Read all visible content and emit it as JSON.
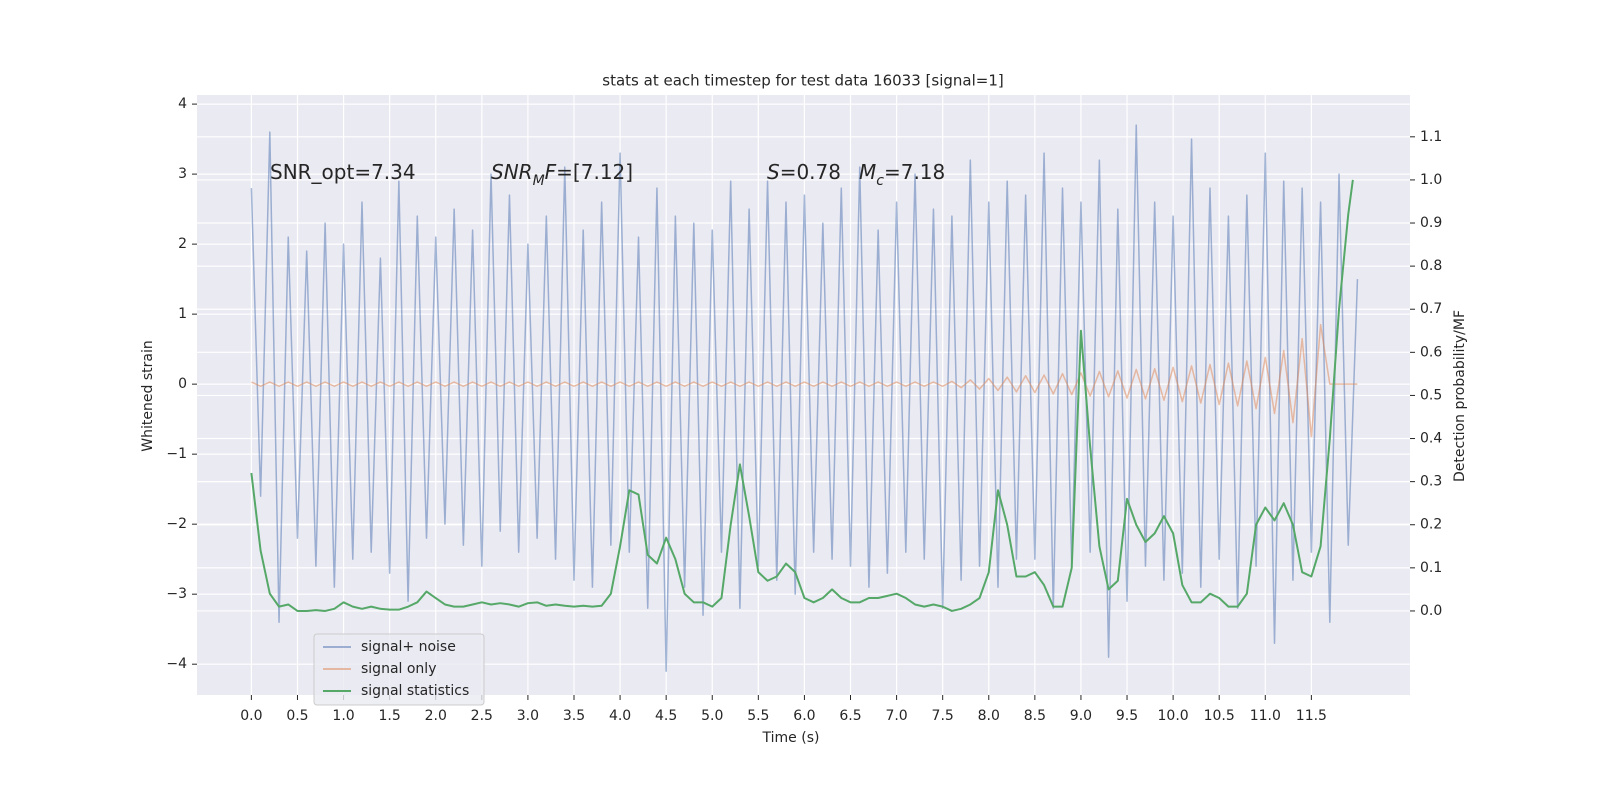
{
  "chart_data": {
    "type": "line",
    "title": "stats at each timestep for test data 16033 [signal=1]",
    "xlabel": "Time (s)",
    "ylabel": "Whitened strain",
    "y2label": "Detection probability/MF",
    "xlim": [
      -0.59,
      12.57
    ],
    "ylim": [
      -4.44,
      4.13
    ],
    "y2lim": [
      -0.195,
      1.197
    ],
    "xticks": [
      {
        "value": 0,
        "label": "0.0"
      },
      0.5,
      {
        "value": 1,
        "label": "1.0"
      },
      1.5,
      {
        "value": 2,
        "label": "2.0"
      },
      2.5,
      {
        "value": 3,
        "label": "3.0"
      },
      3.5,
      {
        "value": 4,
        "label": "4.0"
      },
      4.5,
      {
        "value": 5,
        "label": "5.0"
      },
      5.5,
      {
        "value": 6,
        "label": "6.0"
      },
      6.5,
      {
        "value": 7,
        "label": "7.0"
      },
      7.5,
      {
        "value": 8,
        "label": "8.0"
      },
      8.5,
      {
        "value": 9,
        "label": "9.0"
      },
      9.5,
      {
        "value": 10,
        "label": "10.0"
      },
      10.5,
      {
        "value": 11,
        "label": "11.0"
      },
      11.5
    ],
    "yticks": [
      {
        "value": -4,
        "label": "−4"
      },
      {
        "value": -3,
        "label": "−3"
      },
      {
        "value": -2,
        "label": "−2"
      },
      {
        "value": -1,
        "label": "−1"
      },
      0,
      1,
      2,
      3,
      4
    ],
    "y2ticks": [
      {
        "value": 0,
        "label": "0.0"
      },
      0.1,
      0.2,
      0.3,
      0.4,
      0.5,
      0.6,
      0.7,
      0.8,
      0.9,
      {
        "value": 1,
        "label": "1.0"
      },
      1.1
    ],
    "grid": true,
    "legend": "lower left",
    "annotations": [
      {
        "parts": [
          {
            "text": "SNR_opt=7.34"
          }
        ]
      },
      {
        "parts": [
          {
            "text": "SNR",
            "italic": true
          },
          {
            "text": "M",
            "italic": true,
            "sub": true
          },
          {
            "text": "F",
            "italic": true
          },
          {
            "text": "=[7.12]"
          }
        ]
      },
      {
        "parts": [
          {
            "text": "S",
            "italic": true
          },
          {
            "text": "=0.78"
          }
        ]
      },
      {
        "parts": [
          {
            "text": "M",
            "italic": true
          },
          {
            "text": "c",
            "italic": true,
            "sub": true
          },
          {
            "text": "=7.18"
          }
        ]
      }
    ],
    "x": [
      0,
      0.1,
      0.2,
      0.3,
      0.4,
      0.5,
      0.6,
      0.7,
      0.8,
      0.9,
      1,
      1.1,
      1.2,
      1.3,
      1.4,
      1.5,
      1.6,
      1.7,
      1.8,
      1.9,
      2,
      2.1,
      2.2,
      2.3,
      2.4,
      2.5,
      2.6,
      2.7,
      2.8,
      2.9,
      3,
      3.1,
      3.2,
      3.3,
      3.4,
      3.5,
      3.6,
      3.7,
      3.8,
      3.9,
      4,
      4.1,
      4.2,
      4.3,
      4.4,
      4.5,
      4.6,
      4.7,
      4.8,
      4.9,
      5,
      5.1,
      5.2,
      5.3,
      5.4,
      5.5,
      5.6,
      5.7,
      5.8,
      5.9,
      6,
      6.1,
      6.2,
      6.3,
      6.4,
      6.5,
      6.6,
      6.7,
      6.8,
      6.9,
      7,
      7.1,
      7.2,
      7.3,
      7.4,
      7.5,
      7.6,
      7.7,
      7.8,
      7.9,
      8,
      8.1,
      8.2,
      8.3,
      8.4,
      8.5,
      8.6,
      8.7,
      8.8,
      8.9,
      9,
      9.1,
      9.2,
      9.3,
      9.4,
      9.5,
      9.6,
      9.7,
      9.8,
      9.9,
      10,
      10.1,
      10.2,
      10.3,
      10.4,
      10.5,
      10.6,
      10.7,
      10.8,
      10.9,
      11,
      11.1,
      11.2,
      11.3,
      11.4,
      11.5,
      11.6,
      11.7,
      11.8,
      11.9,
      12
    ],
    "series": [
      {
        "name": "signal+ noise",
        "color": "#4c72b0",
        "alpha": 0.5,
        "values": [
          2.8,
          -1.6,
          3.6,
          -3.4,
          2.1,
          -2.2,
          1.9,
          -2.6,
          2.3,
          -2.9,
          2.0,
          -2.5,
          2.6,
          -2.4,
          1.8,
          -2.7,
          2.9,
          -3.1,
          2.4,
          -2.2,
          2.1,
          -2.0,
          2.5,
          -2.3,
          2.2,
          -2.6,
          3.0,
          -2.1,
          2.7,
          -2.4,
          2.0,
          -2.2,
          2.4,
          -2.5,
          3.1,
          -2.8,
          2.2,
          -2.9,
          2.6,
          -2.3,
          3.3,
          -2.4,
          2.1,
          -3.2,
          2.8,
          -4.1,
          2.4,
          -2.9,
          2.3,
          -3.3,
          2.2,
          -2.4,
          2.9,
          -3.2,
          2.5,
          -2.6,
          2.9,
          -2.8,
          2.6,
          -3.0,
          2.7,
          -2.4,
          2.3,
          -2.5,
          2.8,
          -2.6,
          3.1,
          -2.9,
          2.2,
          -2.7,
          2.6,
          -2.4,
          3.0,
          -2.5,
          2.5,
          -3.2,
          2.4,
          -2.8,
          3.2,
          -2.6,
          2.6,
          -2.9,
          2.9,
          -2.5,
          2.7,
          -2.5,
          3.3,
          -3.2,
          2.8,
          -2.6,
          2.6,
          -2.4,
          3.2,
          -3.9,
          2.5,
          -3.1,
          3.7,
          -2.6,
          2.6,
          -2.8,
          2.4,
          -2.7,
          3.5,
          -2.9,
          2.8,
          -2.5,
          2.4,
          -3.2,
          2.7,
          -2.6,
          3.3,
          -3.7,
          2.9,
          -2.8,
          2.8,
          -2.4,
          2.6,
          -3.4,
          3.0,
          -2.3,
          1.5
        ]
      },
      {
        "name": "signal only",
        "color": "#dd8452",
        "alpha": 0.5,
        "values": [
          0.03,
          -0.03,
          0.03,
          -0.03,
          0.03,
          -0.03,
          0.03,
          -0.03,
          0.03,
          -0.03,
          0.03,
          -0.03,
          0.03,
          -0.03,
          0.03,
          -0.03,
          0.03,
          -0.03,
          0.03,
          -0.03,
          0.03,
          -0.03,
          0.03,
          -0.03,
          0.03,
          -0.03,
          0.03,
          -0.03,
          0.03,
          -0.03,
          0.03,
          -0.03,
          0.03,
          -0.03,
          0.03,
          -0.03,
          0.03,
          -0.03,
          0.03,
          -0.03,
          0.03,
          -0.03,
          0.03,
          -0.03,
          0.03,
          -0.03,
          0.03,
          -0.03,
          0.03,
          -0.03,
          0.03,
          -0.03,
          0.03,
          -0.03,
          0.03,
          -0.03,
          0.03,
          -0.03,
          0.03,
          -0.03,
          0.03,
          -0.03,
          0.03,
          -0.03,
          0.03,
          -0.03,
          0.03,
          -0.03,
          0.03,
          -0.03,
          0.03,
          -0.03,
          0.03,
          -0.03,
          0.03,
          -0.03,
          0.04,
          -0.05,
          0.06,
          -0.07,
          0.08,
          -0.09,
          0.1,
          -0.11,
          0.12,
          -0.12,
          0.13,
          -0.14,
          0.15,
          -0.15,
          0.16,
          -0.17,
          0.18,
          -0.18,
          0.19,
          -0.2,
          0.21,
          -0.21,
          0.22,
          -0.23,
          0.24,
          -0.25,
          0.26,
          -0.27,
          0.28,
          -0.29,
          0.3,
          -0.31,
          0.33,
          -0.35,
          0.38,
          -0.42,
          0.48,
          -0.55,
          0.65,
          -0.75,
          0.85,
          0,
          0,
          0,
          0
        ]
      },
      {
        "name": "signal statistics",
        "color": "#55a868",
        "alpha": 1,
        "axis": "y2",
        "x": [
          0,
          0.1,
          0.2,
          0.3,
          0.4,
          0.5,
          0.6,
          0.7,
          0.8,
          0.9,
          1,
          1.1,
          1.2,
          1.3,
          1.4,
          1.5,
          1.6,
          1.7,
          1.8,
          1.9,
          2,
          2.1,
          2.2,
          2.3,
          2.4,
          2.5,
          2.6,
          2.7,
          2.8,
          2.9,
          3,
          3.1,
          3.2,
          3.3,
          3.4,
          3.5,
          3.6,
          3.7,
          3.8,
          3.9,
          4,
          4.1,
          4.2,
          4.3,
          4.4,
          4.5,
          4.6,
          4.7,
          4.8,
          4.9,
          5,
          5.1,
          5.2,
          5.3,
          5.4,
          5.5,
          5.6,
          5.7,
          5.8,
          5.9,
          6,
          6.1,
          6.2,
          6.3,
          6.4,
          6.5,
          6.6,
          6.7,
          6.8,
          6.9,
          7,
          7.1,
          7.2,
          7.3,
          7.4,
          7.5,
          7.6,
          7.7,
          7.8,
          7.9,
          8,
          8.1,
          8.2,
          8.3,
          8.4,
          8.5,
          8.6,
          8.7,
          8.8,
          8.9,
          9,
          9.1,
          9.2,
          9.3,
          9.4,
          9.5,
          9.6,
          9.7,
          9.8,
          9.9,
          10,
          10.1,
          10.2,
          10.3,
          10.4,
          10.5,
          10.6,
          10.7,
          10.8,
          10.9,
          11,
          11.1,
          11.2,
          11.3,
          11.4,
          11.5,
          11.6,
          11.7,
          11.8,
          11.9,
          11.95
        ],
        "values": [
          0.32,
          0.14,
          0.04,
          0.01,
          0.015,
          0.0,
          0.0,
          0.002,
          0.0,
          0.005,
          0.02,
          0.01,
          0.005,
          0.01,
          0.005,
          0.003,
          0.003,
          0.01,
          0.02,
          0.045,
          0.03,
          0.015,
          0.01,
          0.01,
          0.015,
          0.02,
          0.015,
          0.018,
          0.015,
          0.01,
          0.018,
          0.02,
          0.012,
          0.015,
          0.012,
          0.01,
          0.012,
          0.01,
          0.012,
          0.04,
          0.15,
          0.28,
          0.27,
          0.13,
          0.11,
          0.17,
          0.12,
          0.04,
          0.02,
          0.02,
          0.01,
          0.03,
          0.2,
          0.34,
          0.22,
          0.09,
          0.07,
          0.08,
          0.11,
          0.09,
          0.03,
          0.02,
          0.03,
          0.05,
          0.03,
          0.02,
          0.02,
          0.03,
          0.03,
          0.035,
          0.04,
          0.03,
          0.015,
          0.01,
          0.015,
          0.01,
          0.0,
          0.005,
          0.015,
          0.03,
          0.09,
          0.28,
          0.2,
          0.08,
          0.08,
          0.09,
          0.06,
          0.01,
          0.01,
          0.1,
          0.65,
          0.38,
          0.15,
          0.05,
          0.07,
          0.26,
          0.2,
          0.16,
          0.18,
          0.22,
          0.18,
          0.06,
          0.02,
          0.02,
          0.04,
          0.03,
          0.01,
          0.01,
          0.04,
          0.2,
          0.24,
          0.21,
          0.25,
          0.2,
          0.09,
          0.08,
          0.15,
          0.4,
          0.7,
          0.92,
          1.0
        ]
      }
    ]
  }
}
